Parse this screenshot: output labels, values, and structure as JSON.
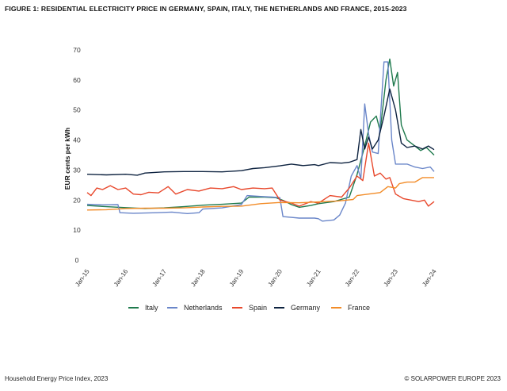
{
  "figure_title": "FIGURE 1: RESIDENTIAL ELECTRICITY PRICE IN GERMANY, SPAIN, ITALY, THE NETHERLANDS AND FRANCE, 2015-2023",
  "footer": {
    "source": "Household Energy Price Index, 2023",
    "copyright": "© SOLARPOWER EUROPE 2023"
  },
  "chart_data": {
    "type": "line",
    "title": "FIGURE 1: RESIDENTIAL ELECTRICITY PRICE IN GERMANY, SPAIN, ITALY, THE NETHERLANDS AND FRANCE, 2015-2023",
    "xlabel": "",
    "ylabel": "EUR cents per kWh",
    "ylim": [
      0,
      70
    ],
    "yticks": [
      0,
      10,
      20,
      30,
      40,
      50,
      60,
      70
    ],
    "xlim": [
      2015.0,
      2024.0
    ],
    "xticks": [
      {
        "x": 2015,
        "label": "Jan-15"
      },
      {
        "x": 2016,
        "label": "Jan-16"
      },
      {
        "x": 2017,
        "label": "Jan-17"
      },
      {
        "x": 2018,
        "label": "Jan-18"
      },
      {
        "x": 2019,
        "label": "Jan-19"
      },
      {
        "x": 2020,
        "label": "Jan-20"
      },
      {
        "x": 2021,
        "label": "Jan-21"
      },
      {
        "x": 2022,
        "label": "Jan-22"
      },
      {
        "x": 2023,
        "label": "Jan-23"
      },
      {
        "x": 2024,
        "label": "Jan-24"
      }
    ],
    "grid": false,
    "legend_position": "bottom",
    "series": [
      {
        "name": "Italy",
        "color": "#1f7a4d",
        "points": [
          [
            2015.0,
            18.2
          ],
          [
            2015.5,
            17.8
          ],
          [
            2016.0,
            17.5
          ],
          [
            2016.5,
            17.2
          ],
          [
            2017.0,
            17.4
          ],
          [
            2017.5,
            17.8
          ],
          [
            2018.0,
            18.3
          ],
          [
            2018.5,
            18.6
          ],
          [
            2019.0,
            19.0
          ],
          [
            2019.2,
            21.0
          ],
          [
            2019.6,
            21.0
          ],
          [
            2019.9,
            20.8
          ],
          [
            2020.1,
            19.8
          ],
          [
            2020.3,
            18.5
          ],
          [
            2020.5,
            17.6
          ],
          [
            2020.8,
            18.2
          ],
          [
            2021.0,
            18.8
          ],
          [
            2021.4,
            19.5
          ],
          [
            2021.8,
            21.0
          ],
          [
            2022.0,
            28.5
          ],
          [
            2022.2,
            38.0
          ],
          [
            2022.35,
            46.0
          ],
          [
            2022.5,
            48.0
          ],
          [
            2022.6,
            43.0
          ],
          [
            2022.75,
            60.0
          ],
          [
            2022.85,
            67.0
          ],
          [
            2022.95,
            58.0
          ],
          [
            2023.05,
            62.5
          ],
          [
            2023.15,
            45.0
          ],
          [
            2023.3,
            40.0
          ],
          [
            2023.5,
            38.0
          ],
          [
            2023.65,
            36.5
          ],
          [
            2023.8,
            37.5
          ],
          [
            2024.0,
            35.0
          ]
        ]
      },
      {
        "name": "Netherlands",
        "color": "#6a86c9",
        "points": [
          [
            2015.0,
            18.6
          ],
          [
            2015.4,
            18.4
          ],
          [
            2015.8,
            18.5
          ],
          [
            2015.85,
            15.8
          ],
          [
            2016.2,
            15.6
          ],
          [
            2016.8,
            15.8
          ],
          [
            2017.2,
            16.0
          ],
          [
            2017.6,
            15.5
          ],
          [
            2017.9,
            15.8
          ],
          [
            2018.0,
            17.0
          ],
          [
            2018.5,
            17.4
          ],
          [
            2019.0,
            18.5
          ],
          [
            2019.15,
            21.5
          ],
          [
            2019.5,
            21.2
          ],
          [
            2019.8,
            21.0
          ],
          [
            2020.0,
            20.8
          ],
          [
            2020.08,
            14.5
          ],
          [
            2020.5,
            14.0
          ],
          [
            2020.9,
            14.0
          ],
          [
            2021.0,
            13.8
          ],
          [
            2021.1,
            13.0
          ],
          [
            2021.4,
            13.4
          ],
          [
            2021.55,
            15.0
          ],
          [
            2021.7,
            19.0
          ],
          [
            2021.85,
            28.0
          ],
          [
            2022.0,
            31.5
          ],
          [
            2022.1,
            27.0
          ],
          [
            2022.2,
            52.0
          ],
          [
            2022.3,
            42.0
          ],
          [
            2022.4,
            36.0
          ],
          [
            2022.55,
            35.5
          ],
          [
            2022.7,
            66.0
          ],
          [
            2022.8,
            66.0
          ],
          [
            2022.9,
            40.0
          ],
          [
            2023.0,
            32.0
          ],
          [
            2023.3,
            32.0
          ],
          [
            2023.5,
            31.0
          ],
          [
            2023.7,
            30.5
          ],
          [
            2023.9,
            31.0
          ],
          [
            2024.0,
            29.5
          ]
        ]
      },
      {
        "name": "Spain",
        "color": "#e8482c",
        "points": [
          [
            2015.0,
            22.5
          ],
          [
            2015.1,
            21.5
          ],
          [
            2015.25,
            24.0
          ],
          [
            2015.4,
            23.5
          ],
          [
            2015.6,
            24.8
          ],
          [
            2015.8,
            23.5
          ],
          [
            2016.0,
            24.0
          ],
          [
            2016.2,
            22.0
          ],
          [
            2016.4,
            21.8
          ],
          [
            2016.6,
            22.6
          ],
          [
            2016.85,
            22.4
          ],
          [
            2017.1,
            24.5
          ],
          [
            2017.3,
            22.0
          ],
          [
            2017.6,
            23.5
          ],
          [
            2017.9,
            23.0
          ],
          [
            2018.2,
            24.0
          ],
          [
            2018.5,
            23.8
          ],
          [
            2018.8,
            24.5
          ],
          [
            2019.0,
            23.5
          ],
          [
            2019.3,
            24.0
          ],
          [
            2019.6,
            23.8
          ],
          [
            2019.8,
            24.0
          ],
          [
            2020.0,
            20.0
          ],
          [
            2020.3,
            19.0
          ],
          [
            2020.5,
            18.0
          ],
          [
            2020.8,
            19.5
          ],
          [
            2021.0,
            19.0
          ],
          [
            2021.3,
            21.5
          ],
          [
            2021.6,
            21.0
          ],
          [
            2021.8,
            24.0
          ],
          [
            2022.0,
            28.0
          ],
          [
            2022.15,
            26.5
          ],
          [
            2022.3,
            39.0
          ],
          [
            2022.45,
            28.0
          ],
          [
            2022.6,
            29.0
          ],
          [
            2022.75,
            27.0
          ],
          [
            2022.85,
            27.5
          ],
          [
            2023.0,
            22.0
          ],
          [
            2023.2,
            20.5
          ],
          [
            2023.4,
            20.0
          ],
          [
            2023.6,
            19.5
          ],
          [
            2023.75,
            20.0
          ],
          [
            2023.85,
            18.0
          ],
          [
            2024.0,
            19.5
          ]
        ]
      },
      {
        "name": "Germany",
        "color": "#0e2340",
        "points": [
          [
            2015.0,
            28.6
          ],
          [
            2015.5,
            28.4
          ],
          [
            2016.0,
            28.6
          ],
          [
            2016.3,
            28.3
          ],
          [
            2016.5,
            29.0
          ],
          [
            2017.0,
            29.4
          ],
          [
            2017.5,
            29.5
          ],
          [
            2018.0,
            29.5
          ],
          [
            2018.5,
            29.4
          ],
          [
            2019.0,
            29.8
          ],
          [
            2019.3,
            30.5
          ],
          [
            2019.6,
            30.8
          ],
          [
            2020.0,
            31.4
          ],
          [
            2020.3,
            32.0
          ],
          [
            2020.6,
            31.5
          ],
          [
            2020.9,
            31.8
          ],
          [
            2021.0,
            31.5
          ],
          [
            2021.3,
            32.5
          ],
          [
            2021.6,
            32.3
          ],
          [
            2021.8,
            32.6
          ],
          [
            2022.0,
            33.5
          ],
          [
            2022.1,
            43.5
          ],
          [
            2022.2,
            37.0
          ],
          [
            2022.3,
            41.0
          ],
          [
            2022.4,
            37.0
          ],
          [
            2022.55,
            40.0
          ],
          [
            2022.7,
            48.0
          ],
          [
            2022.85,
            57.0
          ],
          [
            2023.0,
            50.0
          ],
          [
            2023.15,
            39.0
          ],
          [
            2023.3,
            37.5
          ],
          [
            2023.5,
            38.0
          ],
          [
            2023.7,
            37.0
          ],
          [
            2023.85,
            38.0
          ],
          [
            2024.0,
            36.8
          ]
        ]
      },
      {
        "name": "France",
        "color": "#f28c28",
        "points": [
          [
            2015.0,
            16.7
          ],
          [
            2015.5,
            16.8
          ],
          [
            2016.0,
            17.2
          ],
          [
            2016.5,
            17.3
          ],
          [
            2017.0,
            17.3
          ],
          [
            2017.5,
            17.4
          ],
          [
            2018.0,
            17.7
          ],
          [
            2018.5,
            17.9
          ],
          [
            2019.0,
            18.0
          ],
          [
            2019.5,
            18.8
          ],
          [
            2020.0,
            19.2
          ],
          [
            2020.5,
            19.1
          ],
          [
            2021.0,
            19.4
          ],
          [
            2021.5,
            19.7
          ],
          [
            2021.9,
            20.2
          ],
          [
            2022.0,
            21.5
          ],
          [
            2022.3,
            22.0
          ],
          [
            2022.6,
            22.5
          ],
          [
            2022.8,
            24.5
          ],
          [
            2023.0,
            24.0
          ],
          [
            2023.1,
            25.5
          ],
          [
            2023.3,
            26.0
          ],
          [
            2023.5,
            26.0
          ],
          [
            2023.7,
            27.5
          ],
          [
            2024.0,
            27.5
          ]
        ]
      }
    ]
  }
}
